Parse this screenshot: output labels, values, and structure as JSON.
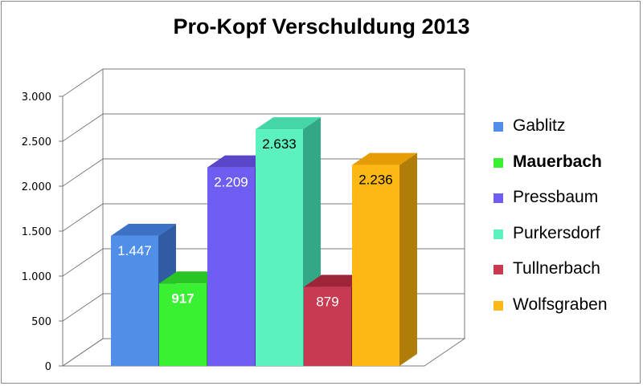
{
  "chart_data": {
    "type": "bar",
    "title": "Pro-Kopf Verschuldung 2013",
    "categories": [
      "Gablitz",
      "Mauerbach",
      "Pressbaum",
      "Purkersdorf",
      "Tullnerbach",
      "Wolfsgraben"
    ],
    "values": [
      1447,
      917,
      2209,
      2633,
      879,
      2236
    ],
    "data_labels": [
      "1.447",
      "917",
      "2.209",
      "2.633",
      "879",
      "2.236"
    ],
    "ylim": [
      0,
      3000
    ],
    "yticks": [
      0,
      500,
      1000,
      1500,
      2000,
      2500,
      3000
    ],
    "ytick_labels": [
      "0",
      "500",
      "1.000",
      "1.500",
      "2.000",
      "2.500",
      "3.000"
    ],
    "grid": true,
    "legend_position": "right",
    "highlighted": "Mauerbach",
    "colors": {
      "Gablitz": {
        "front": "#4f8fe8",
        "top": "#3b72c5",
        "side": "#2f5ca3"
      },
      "Mauerbach": {
        "front": "#39f032",
        "top": "#2ac424",
        "side": "#1ea01a"
      },
      "Pressbaum": {
        "front": "#6f5cf0",
        "top": "#5847c8",
        "side": "#4636a6"
      },
      "Purkersdorf": {
        "front": "#5cf2c0",
        "top": "#44d6a6",
        "side": "#33a886"
      },
      "Tullnerbach": {
        "front": "#c83a52",
        "top": "#9e2438",
        "side": "#7d1a2b"
      },
      "Wolfsgraben": {
        "front": "#fdb814",
        "top": "#e69d05",
        "side": "#b07e08"
      }
    },
    "label_colors": [
      "#ffffff",
      "#ffffff",
      "#ffffff",
      "#000000",
      "#ffffff",
      "#000000"
    ]
  }
}
